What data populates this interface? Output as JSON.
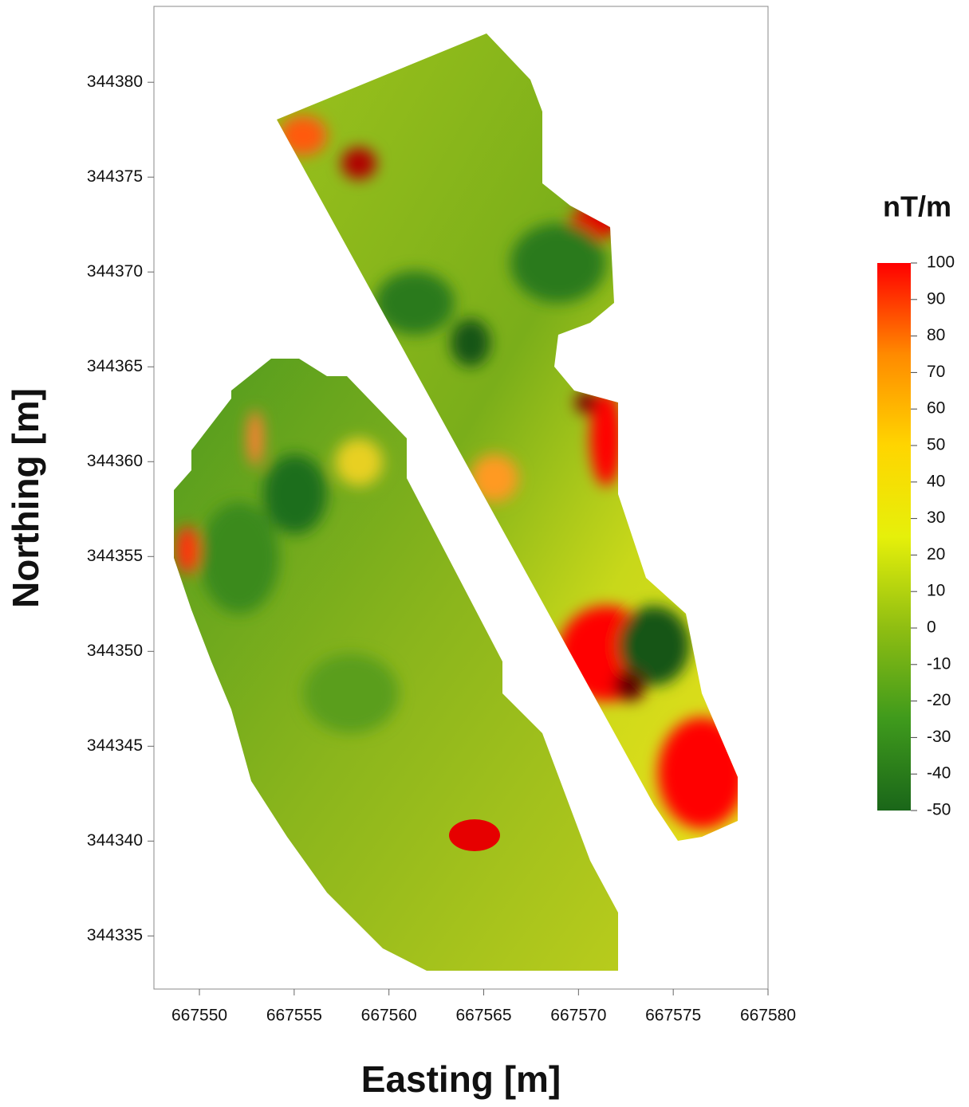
{
  "chart_data": {
    "type": "heatmap",
    "xlabel": "Easting [m]",
    "ylabel": "Northing [m]",
    "xlim": [
      667547.6,
      667580
    ],
    "xticks": [
      667550,
      667555,
      667560,
      667565,
      667570,
      667575,
      667580
    ],
    "ylim": [
      344332.2,
      344384
    ],
    "yticks": [
      344335,
      344340,
      344345,
      344350,
      344355,
      344360,
      344365,
      344370,
      344375,
      344380
    ],
    "colorbar": {
      "label": "nT/m",
      "lim": [
        -50,
        100
      ],
      "ticks": [
        -50,
        -40,
        -30,
        -20,
        -10,
        0,
        10,
        20,
        30,
        40,
        50,
        60,
        70,
        80,
        90,
        100
      ],
      "colors": [
        "#1a6619",
        "#3f9a1c",
        "#8fbe12",
        "#e6f00a",
        "#ffd500",
        "#ff8a00",
        "#ff0000"
      ]
    }
  }
}
